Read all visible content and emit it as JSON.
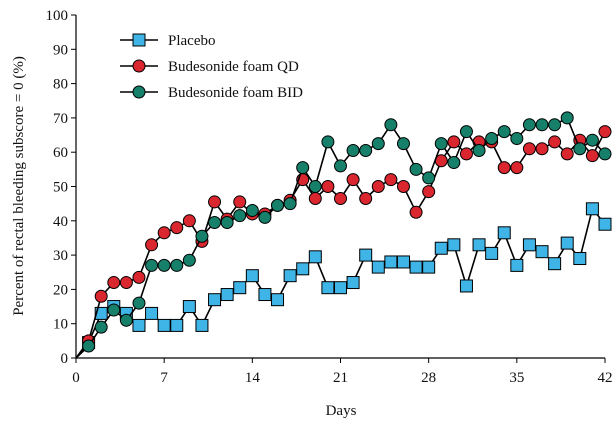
{
  "chart_data": {
    "type": "line",
    "xlabel": "Days",
    "ylabel": "Percent of rectal bleeding subscore = 0 (%)",
    "xlim": [
      0,
      42
    ],
    "ylim": [
      0,
      100
    ],
    "xticks": [
      0,
      7,
      14,
      21,
      28,
      35,
      42
    ],
    "yticks": [
      0,
      10,
      20,
      30,
      40,
      50,
      60,
      70,
      80,
      90,
      100
    ],
    "legend_position": "top-left",
    "grid": false,
    "series": [
      {
        "name": "Placebo",
        "marker": "square",
        "color": "#3fb4e6",
        "x": [
          0,
          1,
          2,
          3,
          4,
          5,
          6,
          7,
          8,
          9,
          10,
          11,
          12,
          13,
          14,
          15,
          16,
          17,
          18,
          19,
          20,
          21,
          22,
          23,
          24,
          25,
          26,
          27,
          28,
          29,
          30,
          31,
          32,
          33,
          34,
          35,
          36,
          37,
          38,
          39,
          40,
          41,
          42
        ],
        "y": [
          0,
          4.5,
          13,
          15,
          13,
          9.5,
          13,
          9.5,
          9.5,
          15,
          9.5,
          17,
          18.5,
          20.5,
          24,
          18.5,
          17,
          24,
          26,
          29.5,
          20.5,
          20.5,
          22,
          30,
          26.5,
          28,
          28,
          26.5,
          26.5,
          32,
          33,
          21,
          33,
          30.5,
          36.5,
          27,
          33,
          31,
          27.5,
          33.5,
          29,
          43.5,
          39
        ]
      },
      {
        "name": "Budesonide foam QD",
        "marker": "circle",
        "color": "#d9262f",
        "x": [
          0,
          1,
          2,
          3,
          4,
          5,
          6,
          7,
          8,
          9,
          10,
          11,
          12,
          13,
          14,
          15,
          16,
          17,
          18,
          19,
          20,
          21,
          22,
          23,
          24,
          25,
          26,
          27,
          28,
          29,
          30,
          31,
          32,
          33,
          34,
          35,
          36,
          37,
          38,
          39,
          40,
          41,
          42
        ],
        "y": [
          0,
          5,
          18,
          22,
          22,
          23.5,
          33,
          36.5,
          38,
          40,
          34,
          45.5,
          40.5,
          45.5,
          42,
          42,
          44.5,
          46,
          52,
          46.5,
          50,
          46.5,
          52,
          46.5,
          50,
          52,
          50,
          42.5,
          48.5,
          57.5,
          63,
          59.5,
          63,
          63,
          55.5,
          55.5,
          61,
          61,
          63,
          59.5,
          63.5,
          59,
          66
        ]
      },
      {
        "name": "Budesonide foam BID",
        "marker": "circle",
        "color": "#16806a",
        "x": [
          0,
          1,
          2,
          3,
          4,
          5,
          6,
          7,
          8,
          9,
          10,
          11,
          12,
          13,
          14,
          15,
          16,
          17,
          18,
          19,
          20,
          21,
          22,
          23,
          24,
          25,
          26,
          27,
          28,
          29,
          30,
          31,
          32,
          33,
          34,
          35,
          36,
          37,
          38,
          39,
          40,
          41,
          42
        ],
        "y": [
          0,
          3.5,
          9,
          14,
          11,
          16,
          27,
          27,
          27,
          28.5,
          35.5,
          39.5,
          39.5,
          41.5,
          43,
          41,
          44.5,
          45,
          55.5,
          50,
          63,
          56,
          60.5,
          60.5,
          62.5,
          68,
          62.5,
          55,
          52.5,
          62.5,
          57,
          66,
          60.5,
          64,
          66,
          64,
          68,
          68,
          68,
          70,
          61,
          63.5,
          59.5
        ]
      }
    ]
  }
}
